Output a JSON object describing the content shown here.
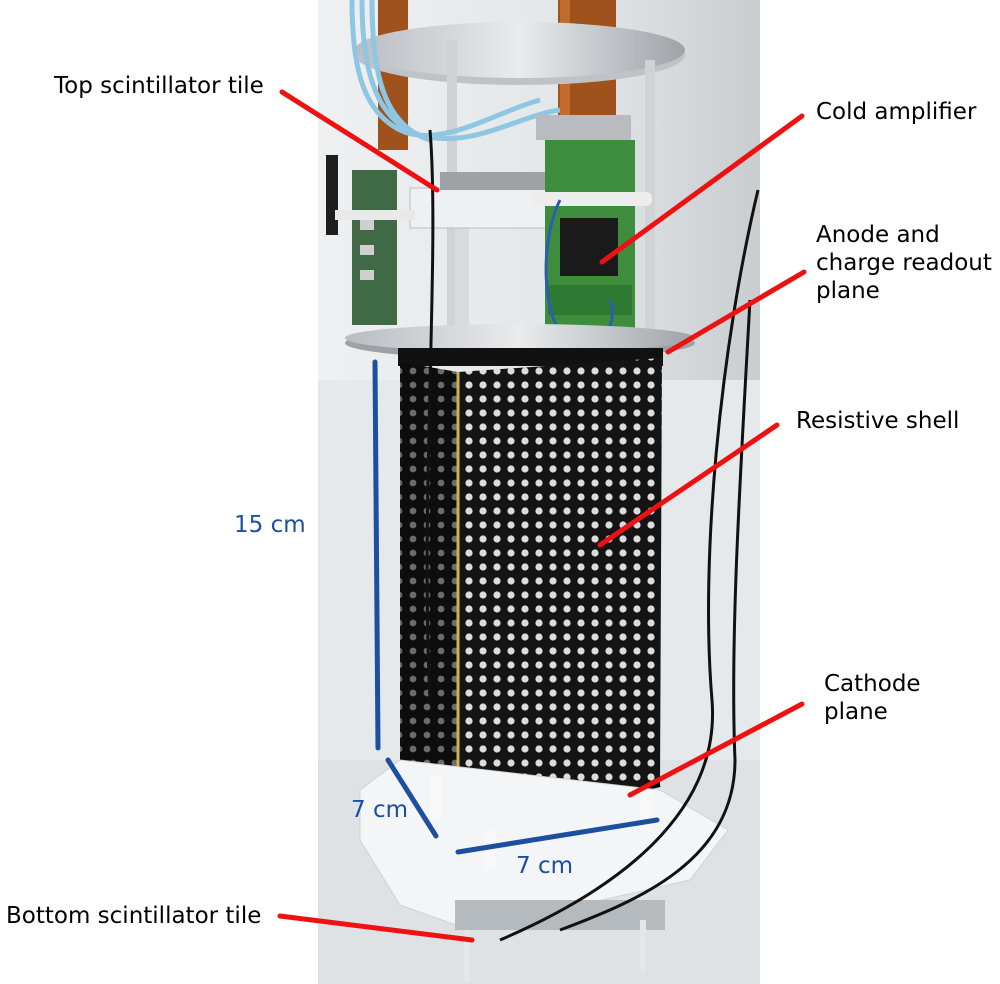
{
  "labels": {
    "top_tile": "Top scintillator tile",
    "cold_amp": "Cold amplifier",
    "anode": "Anode and\ncharge readout\nplane",
    "shell": "Resistive shell",
    "cathode": "Cathode\nplane",
    "bottom_tile": "Bottom scintillator tile"
  },
  "dimensions": {
    "height": "15 cm",
    "depth": "7 cm",
    "width": "7 cm"
  },
  "colors": {
    "pointer": "#ee1111",
    "dimension_line": "#1c4fa0"
  }
}
